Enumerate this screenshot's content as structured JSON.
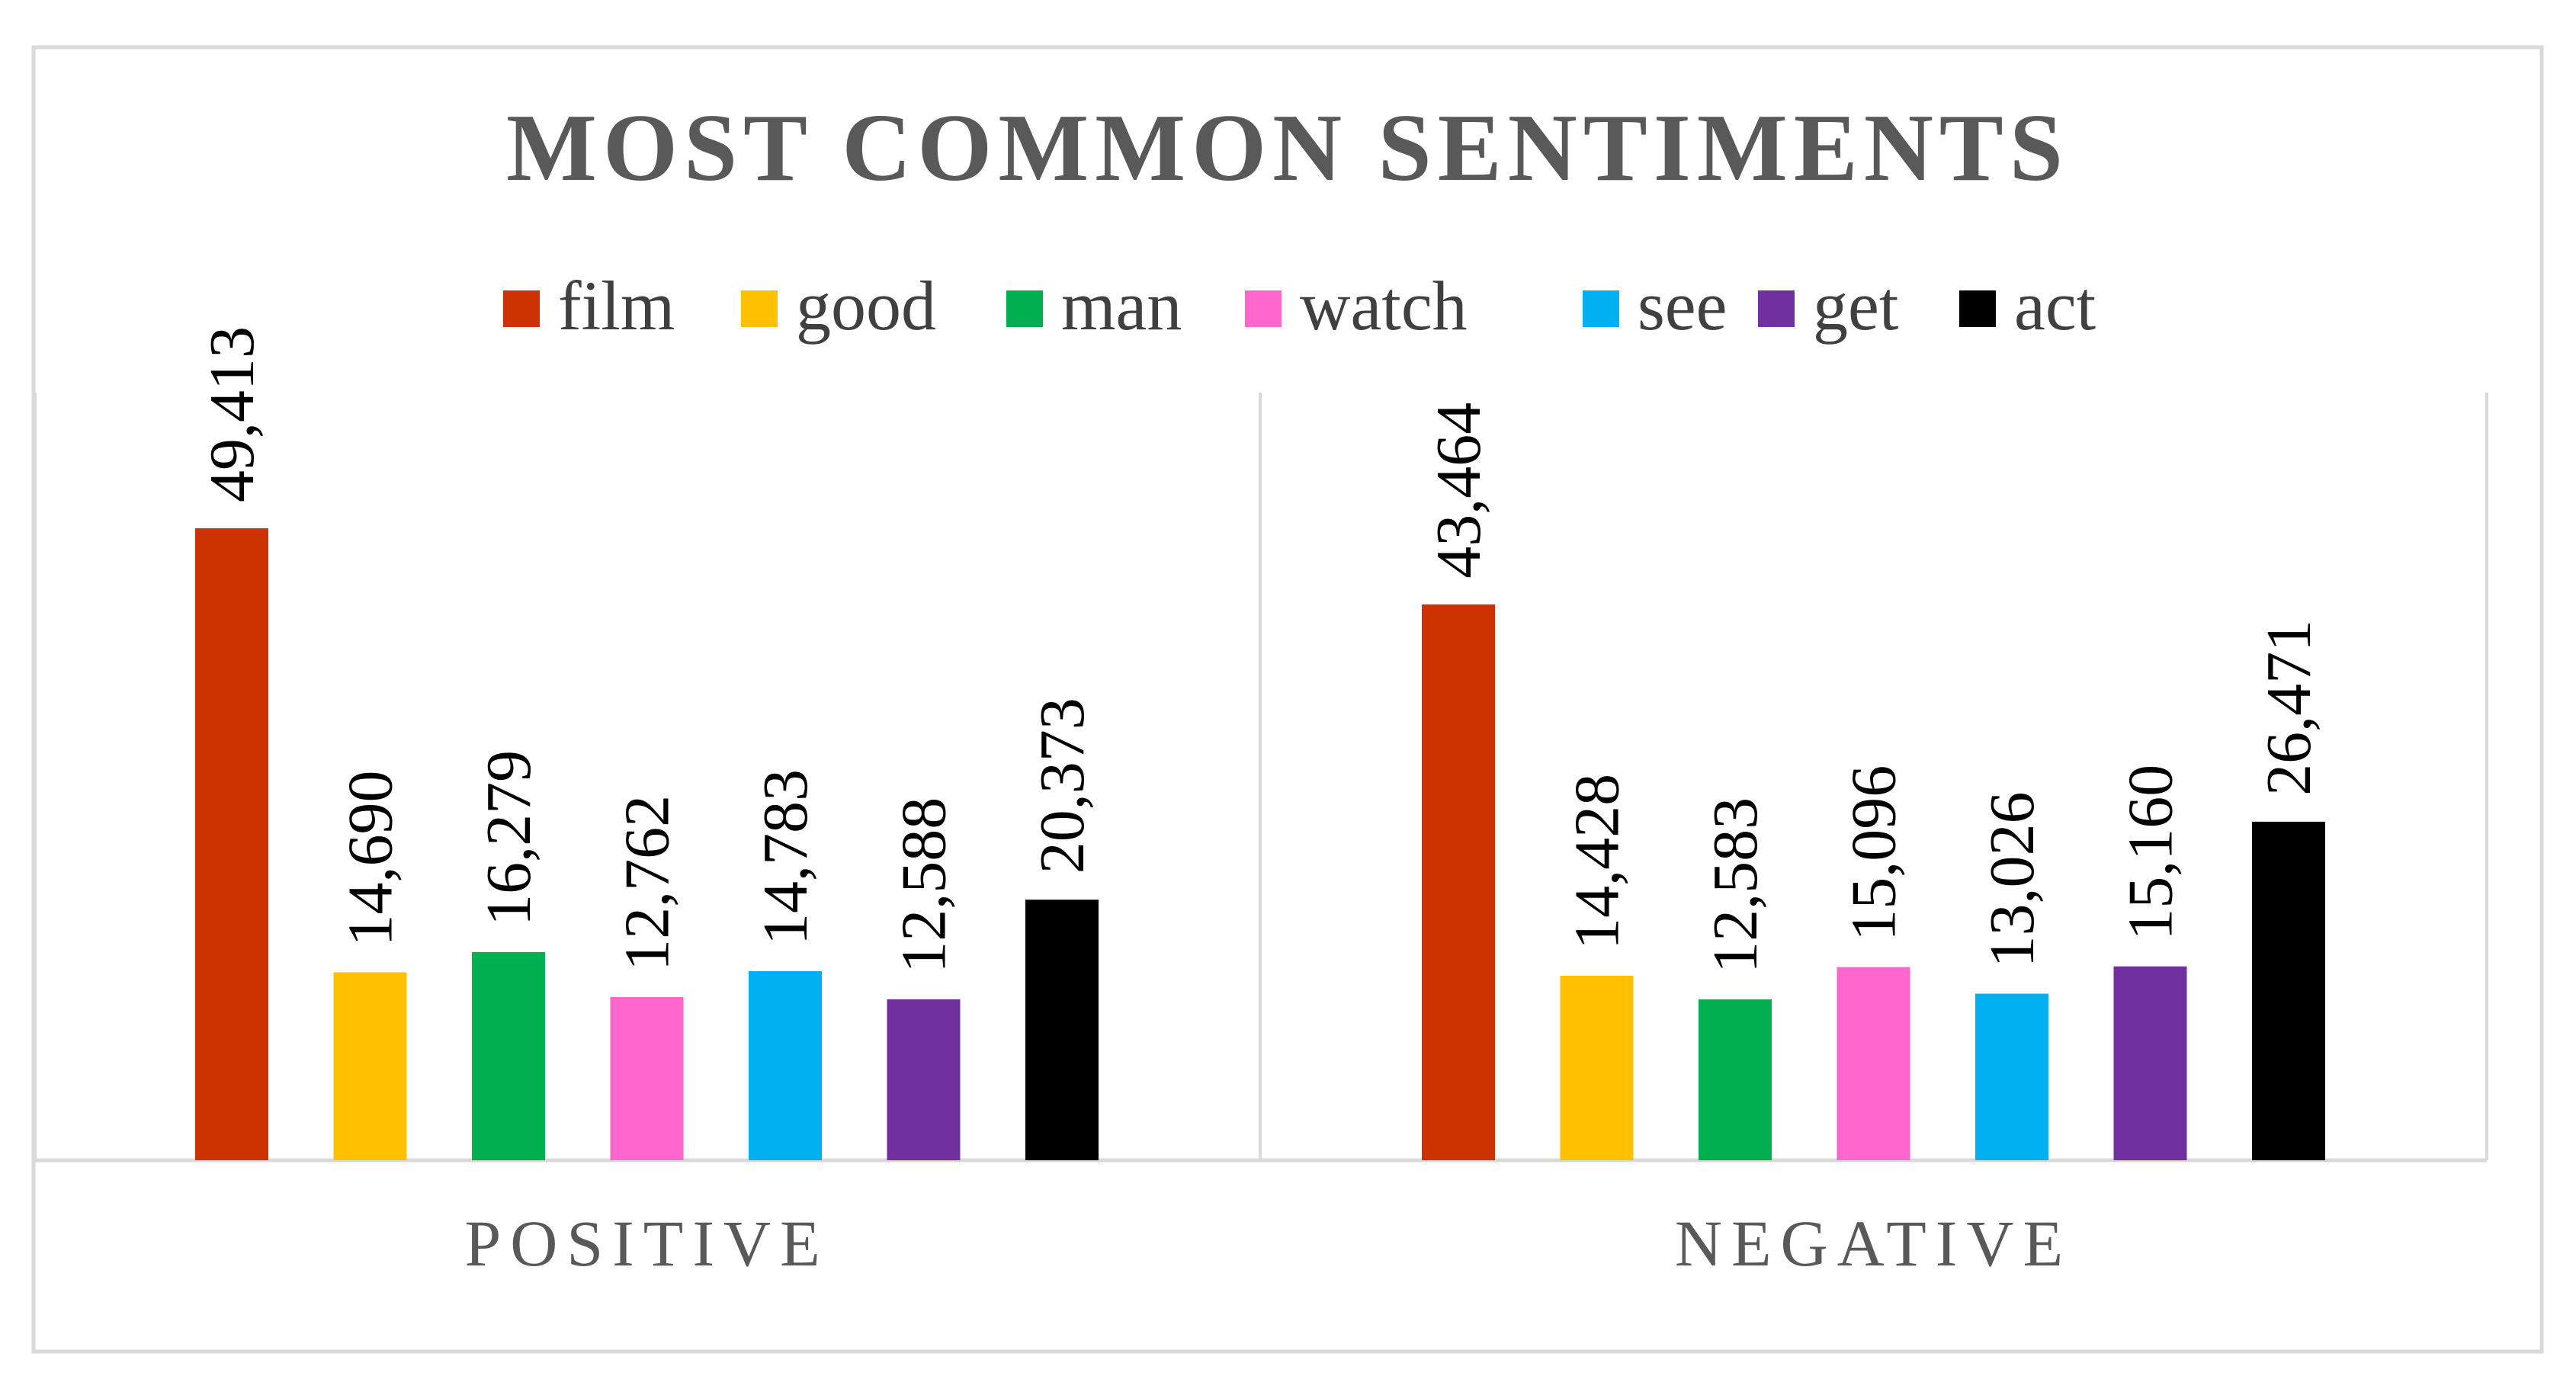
{
  "chart_data": {
    "type": "bar",
    "title": "MOST COMMON SENTIMENTS",
    "xlabel": "",
    "ylabel": "",
    "ylim": [
      0,
      50000
    ],
    "grid": false,
    "legend_position": "top",
    "categories": [
      "POSITIVE",
      "NEGATIVE"
    ],
    "series": [
      {
        "name": "film",
        "color": "#cc3300",
        "values": [
          49413,
          43464
        ],
        "labels": [
          "49,413",
          "43,464"
        ]
      },
      {
        "name": "good",
        "color": "#ffc000",
        "values": [
          14690,
          14428
        ],
        "labels": [
          "14,690",
          "14,428"
        ]
      },
      {
        "name": "man",
        "color": "#00b050",
        "values": [
          16279,
          12583
        ],
        "labels": [
          "16,279",
          "12,583"
        ]
      },
      {
        "name": "watch",
        "color": "#ff66cc",
        "values": [
          12762,
          15096
        ],
        "labels": [
          "12,762",
          "15,096"
        ]
      },
      {
        "name": "see",
        "color": "#00b0f0",
        "values": [
          14783,
          13026
        ],
        "labels": [
          "14,783",
          "13,026"
        ]
      },
      {
        "name": "get",
        "color": "#7030a0",
        "values": [
          12588,
          15160
        ],
        "labels": [
          "12,588",
          "15,160"
        ]
      },
      {
        "name": "act",
        "color": "#000000",
        "values": [
          20373,
          26471
        ],
        "labels": [
          "20,373",
          "26,471"
        ]
      }
    ]
  }
}
